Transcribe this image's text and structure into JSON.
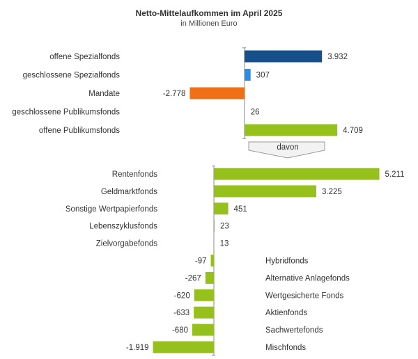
{
  "chart_data": {
    "type": "bar",
    "title": "Netto-Mittelaufkommen im April 2025",
    "subtitle": "in Millionen Euro",
    "colors": {
      "dark_blue": "#174f8a",
      "light_blue": "#2b8ce6",
      "orange": "#f07018",
      "green": "#96c01c",
      "arrow_fill": "#f2f2f2",
      "arrow_stroke": "#999999"
    },
    "connector_label": "davon",
    "groups": [
      {
        "categories": [
          "offene Spezialfonds",
          "geschlossene Spezialfonds",
          "Mandate",
          "geschlossene Publikumsfonds",
          "offene Publikumsfonds"
        ],
        "values": [
          3932,
          307,
          -2778,
          26,
          4709
        ],
        "value_labels": [
          "3.932",
          "307",
          "-2.778",
          "26",
          "4.709"
        ],
        "bar_colors": [
          "dark_blue",
          "light_blue",
          "orange",
          "green",
          "green"
        ]
      },
      {
        "categories": [
          "Rentenfonds",
          "Geldmarktfonds",
          "Sonstige Wertpapierfonds",
          "Lebenszyklusfonds",
          "Zielvorgabefonds",
          "Hybridfonds",
          "Alternative Anlagefonds",
          "Wertgesicherte Fonds",
          "Aktienfonds",
          "Sachwertefonds",
          "Mischfonds"
        ],
        "values": [
          5211,
          3225,
          451,
          23,
          13,
          -97,
          -267,
          -620,
          -633,
          -680,
          -1919
        ],
        "value_labels": [
          "5.211",
          "3.225",
          "451",
          "23",
          "13",
          "-97",
          "-267",
          "-620",
          "-633",
          "-680",
          "-1.919"
        ],
        "bar_colors": [
          "green",
          "green",
          "green",
          "green",
          "green",
          "green",
          "green",
          "green",
          "green",
          "green",
          "green"
        ]
      }
    ]
  }
}
